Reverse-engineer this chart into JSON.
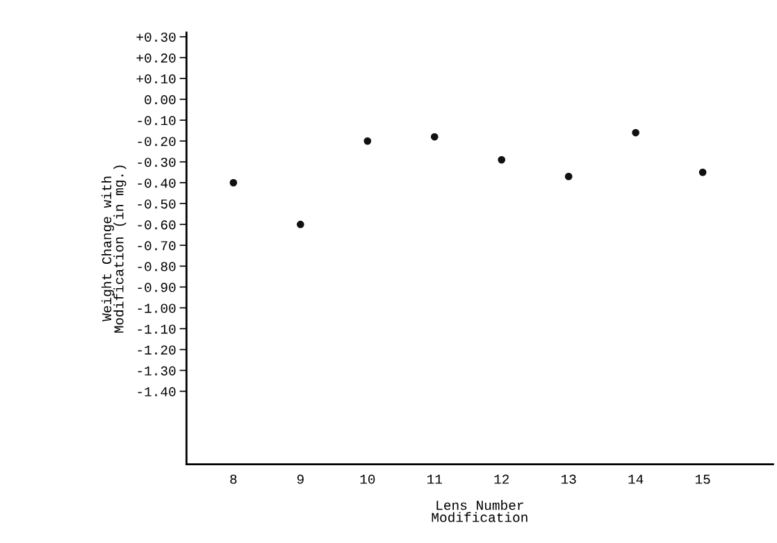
{
  "chart_data": {
    "type": "scatter",
    "xlabel": "Lens Number\nModification",
    "ylabel": "Weight Change with\nModification (in mg.)",
    "categories": [
      "8",
      "9",
      "10",
      "11",
      "12",
      "13",
      "14",
      "15"
    ],
    "values": [
      -0.4,
      -0.6,
      -0.2,
      -0.18,
      -0.29,
      -0.37,
      -0.16,
      -0.35
    ],
    "color": "#111111",
    "marker": "circle",
    "grid": false,
    "legend": false,
    "ylim": [
      -1.75,
      0.32
    ],
    "yticks": [
      {
        "value": 0.3,
        "label": "+0.30"
      },
      {
        "value": 0.2,
        "label": "+0.20"
      },
      {
        "value": 0.1,
        "label": "+0.10"
      },
      {
        "value": 0.0,
        "label": "0.00"
      },
      {
        "value": -0.1,
        "label": "-0.10"
      },
      {
        "value": -0.2,
        "label": "-0.20"
      },
      {
        "value": -0.3,
        "label": "-0.30"
      },
      {
        "value": -0.4,
        "label": "-0.40"
      },
      {
        "value": -0.5,
        "label": "-0.50"
      },
      {
        "value": -0.6,
        "label": "-0.60"
      },
      {
        "value": -0.7,
        "label": "-0.70"
      },
      {
        "value": -0.8,
        "label": "-0.80"
      },
      {
        "value": -0.9,
        "label": "-0.90"
      },
      {
        "value": -1.0,
        "label": "-1.00"
      },
      {
        "value": -1.1,
        "label": "-1.10"
      },
      {
        "value": -1.2,
        "label": "-1.20"
      },
      {
        "value": -1.3,
        "label": "-1.30"
      },
      {
        "value": -1.4,
        "label": "-1.40"
      }
    ]
  }
}
